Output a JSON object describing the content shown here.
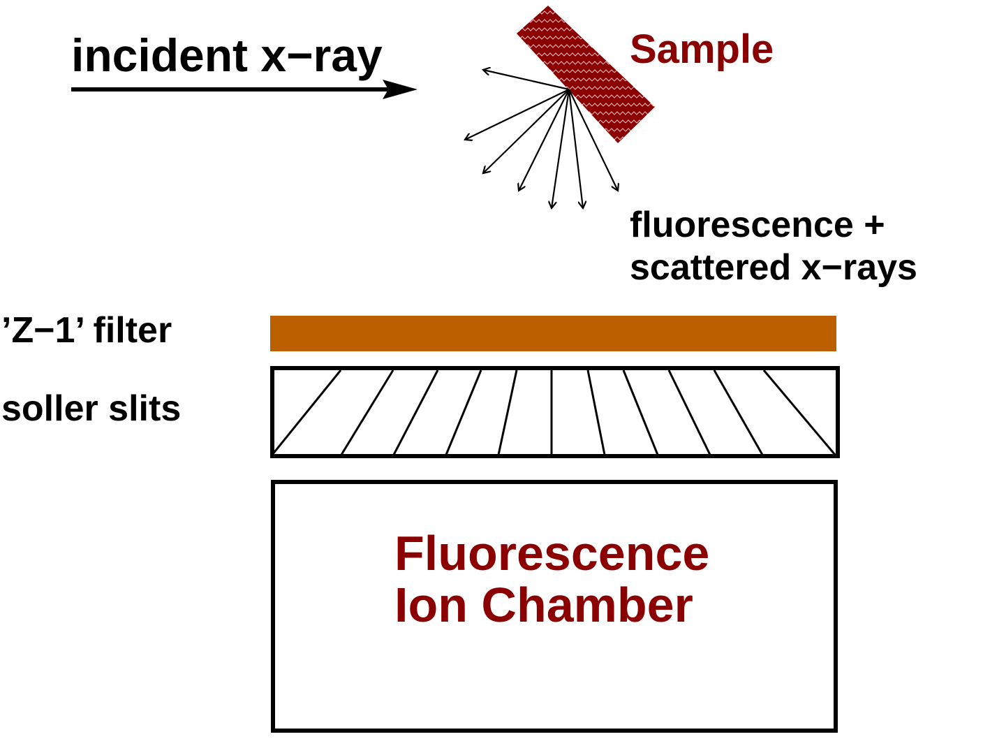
{
  "labels": {
    "incident": "incident x−ray",
    "sample": "Sample",
    "emission_line1": "fluorescence +",
    "emission_line2": "scattered x−rays",
    "filter": "’Z−1’ filter",
    "slits": "soller slits",
    "chamber_line1": "Fluorescence",
    "chamber_line2": "Ion Chamber"
  },
  "colors": {
    "ink": "#000000",
    "sample_fill": "#8b0000",
    "sample_text": "#8b0000",
    "filter_fill": "#bb5f00",
    "chamber_text": "#8b0000"
  },
  "icons": [
    "incident-beam-arrow",
    "sample-slab",
    "scattered-ray-arrows",
    "filter-bar",
    "soller-slit-blades",
    "ion-chamber-box"
  ]
}
